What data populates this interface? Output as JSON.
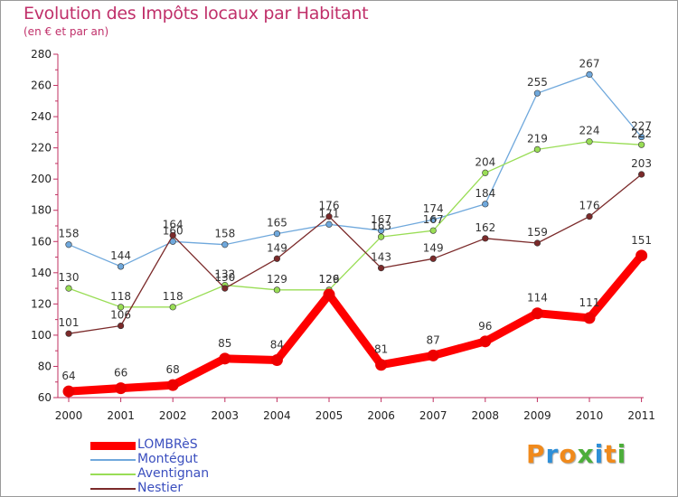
{
  "header": {
    "title": "Evolution des Impôts locaux par Habitant",
    "subtitle": "(en € et par an)"
  },
  "logo": {
    "text": "Proxiti",
    "letters": [
      {
        "ch": "P",
        "color": "#f08a1c"
      },
      {
        "ch": "r",
        "color": "#2e8fd8"
      },
      {
        "ch": "o",
        "color": "#f08a1c"
      },
      {
        "ch": "x",
        "color": "#4cae3a"
      },
      {
        "ch": "i",
        "color": "#2e8fd8"
      },
      {
        "ch": "t",
        "color": "#f08a1c"
      },
      {
        "ch": "i",
        "color": "#4cae3a"
      }
    ]
  },
  "chart_data": {
    "type": "line",
    "title": "Evolution des Impôts locaux par Habitant",
    "subtitle": "(en € et par an)",
    "xlabel": "",
    "ylabel": "",
    "categories": [
      "2000",
      "2001",
      "2002",
      "2003",
      "2004",
      "2005",
      "2006",
      "2007",
      "2008",
      "2009",
      "2010",
      "2011"
    ],
    "ylim": [
      60,
      280
    ],
    "yticks": [
      60,
      80,
      100,
      120,
      140,
      160,
      180,
      200,
      220,
      240,
      260,
      280
    ],
    "grid": false,
    "legend_position": "bottom-left",
    "series": [
      {
        "name": "LOMBRèS",
        "color": "#ff0000",
        "values": [
          64,
          66,
          68,
          85,
          84,
          126,
          81,
          87,
          96,
          114,
          111,
          151
        ],
        "labels": [
          "64",
          "66",
          "68",
          "85",
          "84",
          "126",
          "81",
          "87",
          "96",
          "114",
          "111",
          "151"
        ],
        "thick": true
      },
      {
        "name": "Montégut",
        "color": "#6fa8dc",
        "values": [
          158,
          144,
          160,
          158,
          165,
          171,
          167,
          174,
          184,
          255,
          267,
          227
        ],
        "labels": [
          "158",
          "144",
          "160",
          "158",
          "165",
          "171",
          "167",
          "174",
          "184",
          "255",
          "267",
          "227"
        ],
        "thick": false
      },
      {
        "name": "Aventignan",
        "color": "#99dd55",
        "values": [
          130,
          118,
          118,
          132,
          129,
          129,
          163,
          167,
          204,
          219,
          224,
          222
        ],
        "labels": [
          "130",
          "118",
          "118",
          "132",
          "129",
          "129",
          "163",
          "167",
          "204",
          "219",
          "224",
          "222"
        ],
        "thick": false
      },
      {
        "name": "Nestier",
        "color": "#7b2a2a",
        "values": [
          101,
          106,
          164,
          130,
          149,
          176,
          143,
          149,
          162,
          159,
          176,
          203
        ],
        "labels": [
          "101",
          "106",
          "164",
          "130",
          "149",
          "176",
          "143",
          "149",
          "162",
          "159",
          "176",
          "203"
        ],
        "thick": false
      }
    ]
  }
}
